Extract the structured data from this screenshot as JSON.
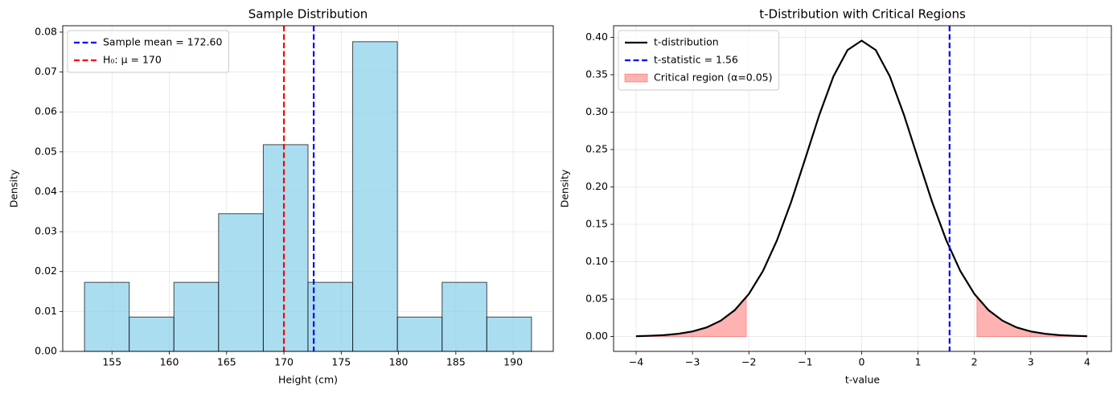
{
  "chart_data": [
    {
      "type": "histogram",
      "title": "Sample Distribution",
      "xlabel": "Height (cm)",
      "ylabel": "Density",
      "bins": [
        152.6,
        156.5,
        160.4,
        164.3,
        168.2,
        172.1,
        176.0,
        179.9,
        183.8,
        187.7,
        191.6
      ],
      "values": [
        0.0173,
        0.0086,
        0.0173,
        0.0345,
        0.0518,
        0.0173,
        0.0776,
        0.0086,
        0.0173,
        0.0086
      ],
      "color": "#87ceeb",
      "edgecolor": "#000000",
      "vlines": [
        {
          "name": "Sample mean = 172.60",
          "color": "#0000ff",
          "value": 172.6
        },
        {
          "name": "H₀: μ = 170",
          "color": "#ff0000",
          "value": 170
        }
      ],
      "xlim": [
        150.7,
        193.5
      ],
      "ylim": [
        0,
        0.0816
      ],
      "xticks": [
        155,
        160,
        165,
        170,
        175,
        180,
        185,
        190
      ],
      "yticks": [
        {
          "value": 0,
          "label": "0.00"
        },
        {
          "value": 0.01,
          "label": "0.01"
        },
        {
          "value": 0.02,
          "label": "0.02"
        },
        {
          "value": 0.03,
          "label": "0.03"
        },
        {
          "value": 0.04,
          "label": "0.04"
        },
        {
          "value": 0.05,
          "label": "0.05"
        },
        {
          "value": 0.06,
          "label": "0.06"
        },
        {
          "value": 0.07,
          "label": "0.07"
        },
        {
          "value": 0.08,
          "label": "0.08"
        }
      ],
      "grid": true,
      "legend": "upper left"
    },
    {
      "type": "line",
      "title": "t-Distribution with Critical Regions",
      "xlabel": "t-value",
      "ylabel": "Density",
      "series": [
        {
          "name": "t-distribution",
          "color": "#000000",
          "x": [
            -4,
            -3.75,
            -3.5,
            -3.25,
            -3,
            -2.75,
            -2.5,
            -2.25,
            -2,
            -1.75,
            -1.5,
            -1.25,
            -1,
            -0.75,
            -0.5,
            -0.25,
            0,
            0.25,
            0.5,
            0.75,
            1,
            1.25,
            1.5,
            1.75,
            2,
            2.25,
            2.5,
            2.75,
            3,
            3.25,
            3.5,
            3.75,
            4
          ],
          "values": [
            0.0005,
            0.0011,
            0.002,
            0.0038,
            0.0069,
            0.0122,
            0.0212,
            0.0354,
            0.057,
            0.0877,
            0.129,
            0.18,
            0.2379,
            0.2965,
            0.3478,
            0.383,
            0.3956,
            0.383,
            0.3478,
            0.2965,
            0.2379,
            0.18,
            0.129,
            0.0877,
            0.057,
            0.0354,
            0.0212,
            0.0122,
            0.0069,
            0.0038,
            0.002,
            0.0011,
            0.0005
          ]
        }
      ],
      "vlines": [
        {
          "name": "t-statistic = 1.56",
          "color": "#0000ff",
          "value": 1.56
        }
      ],
      "critical_region": {
        "name": "Critical region (α=0.05)",
        "color": "#ff0000",
        "segments": [
          {
            "x": [
              -4,
              -3.75,
              -3.5,
              -3.25,
              -3,
              -2.75,
              -2.5,
              -2.25,
              -2.045
            ],
            "values": [
              0.0005,
              0.0011,
              0.002,
              0.0038,
              0.0069,
              0.0122,
              0.0212,
              0.0354,
              0.0526
            ]
          },
          {
            "x": [
              2.045,
              2.25,
              2.5,
              2.75,
              3,
              3.25,
              3.5,
              3.75,
              4
            ],
            "values": [
              0.0526,
              0.0354,
              0.0212,
              0.0122,
              0.0069,
              0.0038,
              0.002,
              0.0011,
              0.0005
            ]
          }
        ]
      },
      "xlim": [
        -4.4,
        4.43
      ],
      "ylim": [
        -0.0198,
        0.4155
      ],
      "xticks": [
        {
          "value": -4,
          "label": "−4"
        },
        {
          "value": -3,
          "label": "−3"
        },
        {
          "value": -2,
          "label": "−2"
        },
        {
          "value": -1,
          "label": "−1"
        },
        0,
        1,
        2,
        3,
        4
      ],
      "yticks": [
        {
          "value": 0,
          "label": "0.00"
        },
        {
          "value": 0.05,
          "label": "0.05"
        },
        {
          "value": 0.1,
          "label": "0.10"
        },
        {
          "value": 0.15,
          "label": "0.15"
        },
        {
          "value": 0.2,
          "label": "0.20"
        },
        {
          "value": 0.25,
          "label": "0.25"
        },
        {
          "value": 0.3,
          "label": "0.30"
        },
        {
          "value": 0.35,
          "label": "0.35"
        },
        {
          "value": 0.4,
          "label": "0.40"
        }
      ],
      "grid": true,
      "legend": "upper left"
    }
  ]
}
